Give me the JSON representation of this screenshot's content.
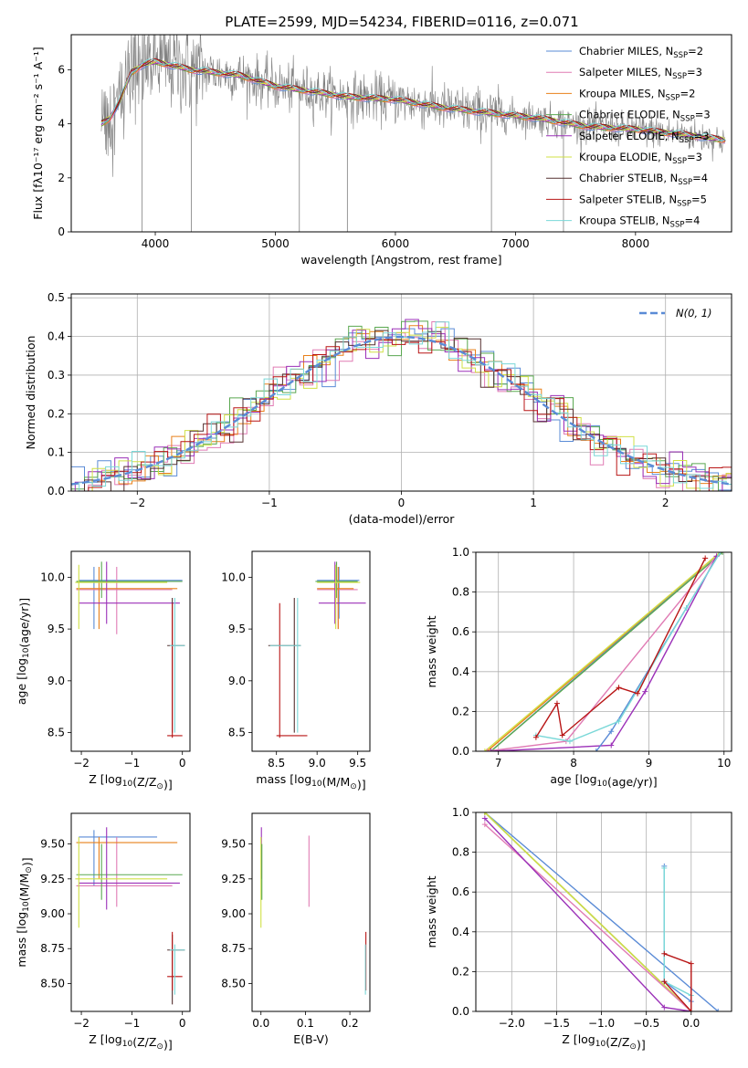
{
  "figure_title": "PLATE=2599, MJD=54234, FIBERID=0116, z=0.071",
  "colors": {
    "data": "#808080",
    "grid": "#b0b0b0",
    "models": [
      "#5a8bd6",
      "#e07bb4",
      "#e8801a",
      "#5aa850",
      "#9b30b8",
      "#d0e045",
      "#553030",
      "#b81515",
      "#7ad8d8"
    ]
  },
  "chart_data": [
    {
      "type": "line",
      "id": "spectrum",
      "xlabel": "wavelength [Angstrom, rest frame]",
      "ylabel": "Flux [fλ10⁻¹⁷ erg cm⁻² s⁻¹ A⁻¹]",
      "xlim": [
        3300,
        8800
      ],
      "ylim": [
        0,
        7.3
      ],
      "xticks": [
        4000,
        5000,
        6000,
        7000,
        8000
      ],
      "yticks": [
        0,
        2,
        4,
        6
      ],
      "legend": "top-right",
      "grid": false,
      "continuum": {
        "x": [
          3550,
          3620,
          3700,
          3800,
          3900,
          4000,
          4100,
          4300,
          4500,
          4700,
          5000,
          5300,
          5600,
          6000,
          6400,
          6800,
          7200,
          7600,
          8000,
          8400,
          8750
        ],
        "y": [
          4.0,
          4.2,
          4.8,
          5.9,
          6.2,
          6.3,
          6.2,
          6.0,
          5.9,
          5.8,
          5.4,
          5.2,
          5.0,
          4.9,
          4.6,
          4.4,
          4.2,
          3.9,
          3.8,
          3.6,
          3.4
        ]
      },
      "series": [
        {
          "name": "Chabrier MILES, N",
          "sub": "SSP",
          "suffix": "=2"
        },
        {
          "name": "Salpeter MILES, N",
          "sub": "SSP",
          "suffix": "=3"
        },
        {
          "name": "Kroupa MILES, N",
          "sub": "SSP",
          "suffix": "=2"
        },
        {
          "name": "Chabrier ELODIE, N",
          "sub": "SSP",
          "suffix": "=3"
        },
        {
          "name": "Salpeter ELODIE, N",
          "sub": "SSP",
          "suffix": "=3"
        },
        {
          "name": "Kroupa ELODIE, N",
          "sub": "SSP",
          "suffix": "=3"
        },
        {
          "name": "Chabrier STELIB, N",
          "sub": "SSP",
          "suffix": "=4"
        },
        {
          "name": "Salpeter STELIB, N",
          "sub": "SSP",
          "suffix": "=5"
        },
        {
          "name": "Kroupa STELIB, N",
          "sub": "SSP",
          "suffix": "=4"
        }
      ]
    },
    {
      "type": "bar",
      "id": "residuals",
      "xlabel": "(data-model)/error",
      "ylabel": "Normed distribution",
      "xlim": [
        -2.5,
        2.5
      ],
      "ylim": [
        0,
        0.51
      ],
      "xticks": [
        -2,
        -1,
        0,
        1,
        2
      ],
      "xtick_labels": [
        "−2",
        "−1",
        "0",
        "1",
        "2"
      ],
      "yticks": [
        0.0,
        0.1,
        0.2,
        0.3,
        0.4,
        0.5
      ],
      "ytick_labels": [
        "0.0",
        "0.1",
        "0.2",
        "0.3",
        "0.4",
        "0.5"
      ],
      "grid": true,
      "legend": "top-right",
      "normal_curve": {
        "name": "N(0, 1)",
        "mean": 0,
        "sd": 1
      },
      "bin_width": 0.1
    },
    {
      "type": "scatter",
      "id": "age-vs-Z",
      "xlabel": "Z [log10(Z/Z⊙)]",
      "ylabel": "age  [log10(age/yr)]",
      "xlim": [
        -2.2,
        0.15
      ],
      "ylim": [
        8.32,
        10.25
      ],
      "xticks": [
        -2,
        -1,
        0
      ],
      "xtick_labels": [
        "−2",
        "−1",
        "0"
      ],
      "yticks": [
        8.5,
        9.0,
        9.5,
        10.0
      ],
      "ytick_labels": [
        "8.5",
        "9.0",
        "9.5",
        "10.0"
      ],
      "grid": false,
      "crosses": [
        {
          "c": 0,
          "x": -1.75,
          "y": 9.97,
          "xe": [
            -2.05,
            0.0
          ],
          "ye": [
            9.5,
            10.1
          ]
        },
        {
          "c": 1,
          "x": -1.3,
          "y": 9.88,
          "xe": [
            -2.1,
            -0.2
          ],
          "ye": [
            9.45,
            10.1
          ]
        },
        {
          "c": 2,
          "x": -1.65,
          "y": 9.89,
          "xe": [
            -2.1,
            -0.1
          ],
          "ye": [
            9.5,
            10.1
          ]
        },
        {
          "c": 3,
          "x": -1.6,
          "y": 9.96,
          "xe": [
            -2.1,
            0.0
          ],
          "ye": [
            9.8,
            10.15
          ]
        },
        {
          "c": 4,
          "x": -1.5,
          "y": 9.75,
          "xe": [
            -2.05,
            -0.05
          ],
          "ye": [
            9.55,
            10.15
          ]
        },
        {
          "c": 5,
          "x": -2.05,
          "y": 9.95,
          "xe": [
            -2.12,
            -0.3
          ],
          "ye": [
            9.5,
            10.12
          ]
        },
        {
          "c": 6,
          "x": -0.2,
          "y": 9.34,
          "xe": [
            -0.3,
            0.05
          ],
          "ye": [
            8.5,
            9.8
          ]
        },
        {
          "c": 7,
          "x": -0.2,
          "y": 8.47,
          "xe": [
            -0.3,
            0.0
          ],
          "ye": [
            8.45,
            9.75
          ]
        },
        {
          "c": 8,
          "x": -0.15,
          "y": 9.34,
          "xe": [
            -0.25,
            0.05
          ],
          "ye": [
            8.5,
            9.8
          ]
        }
      ]
    },
    {
      "type": "scatter",
      "id": "age-vs-mass",
      "xlabel": "mass [log10(M/M⊙)]",
      "ylabel": "",
      "xlim": [
        8.2,
        9.65
      ],
      "ylim": [
        8.32,
        10.25
      ],
      "xticks": [
        8.5,
        9.0,
        9.5
      ],
      "xtick_labels": [
        "8.5",
        "9.0",
        "9.5"
      ],
      "yticks": [
        8.5,
        9.0,
        9.5,
        10.0
      ],
      "ytick_labels": [
        "8.5",
        "9.0",
        "9.5",
        "10.0"
      ],
      "grid": false,
      "crosses": [
        {
          "c": 0,
          "x": 9.27,
          "y": 9.97,
          "xe": [
            9.0,
            9.52
          ],
          "ye": [
            9.6,
            10.1
          ]
        },
        {
          "c": 1,
          "x": 9.26,
          "y": 9.88,
          "xe": [
            9.0,
            9.5
          ],
          "ye": [
            9.5,
            10.1
          ]
        },
        {
          "c": 2,
          "x": 9.26,
          "y": 9.89,
          "xe": [
            9.0,
            9.45
          ],
          "ye": [
            9.5,
            10.1
          ]
        },
        {
          "c": 3,
          "x": 9.24,
          "y": 9.96,
          "xe": [
            8.98,
            9.5
          ],
          "ye": [
            9.8,
            10.15
          ]
        },
        {
          "c": 4,
          "x": 9.22,
          "y": 9.75,
          "xe": [
            9.02,
            9.6
          ],
          "ye": [
            9.55,
            10.15
          ]
        },
        {
          "c": 5,
          "x": 9.23,
          "y": 9.95,
          "xe": [
            9.0,
            9.53
          ],
          "ye": [
            9.5,
            10.12
          ]
        },
        {
          "c": 6,
          "x": 8.72,
          "y": 9.34,
          "xe": [
            8.4,
            8.8
          ],
          "ye": [
            8.5,
            9.8
          ]
        },
        {
          "c": 7,
          "x": 8.54,
          "y": 8.47,
          "xe": [
            8.5,
            8.88
          ],
          "ye": [
            8.45,
            9.75
          ]
        },
        {
          "c": 8,
          "x": 8.76,
          "y": 9.34,
          "xe": [
            8.42,
            8.8
          ],
          "ye": [
            8.5,
            9.8
          ]
        }
      ]
    },
    {
      "type": "line",
      "id": "massweight-vs-age",
      "xlabel": "age  [log10(age/yr)]",
      "ylabel": "mass weight",
      "xlim": [
        6.7,
        10.1
      ],
      "ylim": [
        0,
        1
      ],
      "xticks": [
        7,
        8,
        9,
        10
      ],
      "xtick_labels": [
        "7",
        "8",
        "9",
        "10"
      ],
      "yticks": [
        0.0,
        0.2,
        0.4,
        0.6,
        0.8,
        1.0
      ],
      "ytick_labels": [
        "0.0",
        "0.2",
        "0.4",
        "0.6",
        "0.8",
        "1.0"
      ],
      "grid": true,
      "lines": [
        {
          "c": 0,
          "x": [
            6.9,
            9.95
          ],
          "y": [
            0.0,
            1.0
          ]
        },
        {
          "c": 2,
          "x": [
            6.85,
            9.95
          ],
          "y": [
            0.0,
            1.0
          ]
        },
        {
          "c": 3,
          "x": [
            6.9,
            9.98
          ],
          "y": [
            0.0,
            1.0
          ]
        },
        {
          "c": 5,
          "x": [
            6.82,
            9.95
          ],
          "y": [
            0.0,
            1.0
          ]
        },
        {
          "c": 1,
          "x": [
            6.85,
            7.9,
            9.9
          ],
          "y": [
            0.0,
            0.05,
            0.98
          ]
        },
        {
          "c": 4,
          "x": [
            6.9,
            8.5,
            8.95,
            9.9
          ],
          "y": [
            0.0,
            0.03,
            0.3,
            0.98
          ]
        },
        {
          "c": 0,
          "x": [
            8.3,
            8.5,
            9.5,
            9.95
          ],
          "y": [
            0.0,
            0.1,
            0.72,
            1.0
          ]
        },
        {
          "c": 8,
          "x": [
            7.5,
            7.95,
            8.6,
            9.5,
            9.95
          ],
          "y": [
            0.08,
            0.05,
            0.15,
            0.72,
            1.0
          ]
        },
        {
          "c": 7,
          "x": [
            7.5,
            7.78,
            7.85,
            8.6,
            8.85,
            9.75
          ],
          "y": [
            0.07,
            0.24,
            0.08,
            0.32,
            0.29,
            0.97
          ]
        }
      ]
    },
    {
      "type": "scatter",
      "id": "mass-vs-Z",
      "xlabel": "Z [log10(Z/Z⊙)]",
      "ylabel": "mass [log10(M/M⊙)]",
      "xlim": [
        -2.2,
        0.15
      ],
      "ylim": [
        8.3,
        9.72
      ],
      "xticks": [
        -2,
        -1,
        0
      ],
      "xtick_labels": [
        "−2",
        "−1",
        "0"
      ],
      "yticks": [
        8.5,
        8.75,
        9.0,
        9.25,
        9.5
      ],
      "ytick_labels": [
        "8.50",
        "8.75",
        "9.00",
        "9.25",
        "9.50"
      ],
      "grid": false,
      "crosses": [
        {
          "c": 0,
          "x": -1.75,
          "y": 9.55,
          "xe": [
            -2.05,
            -0.5
          ],
          "ye": [
            9.2,
            9.6
          ]
        },
        {
          "c": 1,
          "x": -1.3,
          "y": 9.2,
          "xe": [
            -2.1,
            -0.2
          ],
          "ye": [
            9.05,
            9.55
          ]
        },
        {
          "c": 2,
          "x": -1.65,
          "y": 9.51,
          "xe": [
            -2.1,
            -0.1
          ],
          "ye": [
            9.25,
            9.55
          ]
        },
        {
          "c": 3,
          "x": -1.6,
          "y": 9.28,
          "xe": [
            -2.1,
            0.0
          ],
          "ye": [
            9.1,
            9.5
          ]
        },
        {
          "c": 4,
          "x": -1.5,
          "y": 9.22,
          "xe": [
            -2.05,
            -0.05
          ],
          "ye": [
            9.03,
            9.62
          ]
        },
        {
          "c": 5,
          "x": -2.05,
          "y": 9.25,
          "xe": [
            -2.12,
            -0.3
          ],
          "ye": [
            8.9,
            9.55
          ]
        },
        {
          "c": 6,
          "x": -0.2,
          "y": 8.74,
          "xe": [
            -0.3,
            0.05
          ],
          "ye": [
            8.35,
            8.85
          ]
        },
        {
          "c": 7,
          "x": -0.2,
          "y": 8.55,
          "xe": [
            -0.3,
            0.0
          ],
          "ye": [
            8.45,
            8.87
          ]
        },
        {
          "c": 8,
          "x": -0.15,
          "y": 8.74,
          "xe": [
            -0.25,
            0.05
          ],
          "ye": [
            8.42,
            8.78
          ]
        }
      ]
    },
    {
      "type": "scatter",
      "id": "mass-vs-EBV",
      "xlabel": "E(B-V)",
      "ylabel": "",
      "xlim": [
        -0.02,
        0.245
      ],
      "ylim": [
        8.3,
        9.72
      ],
      "xticks": [
        0.0,
        0.1,
        0.2
      ],
      "xtick_labels": [
        "0.0",
        "0.1",
        "0.2"
      ],
      "yticks": [
        8.5,
        8.75,
        9.0,
        9.25,
        9.5
      ],
      "ytick_labels": [
        "8.50",
        "8.75",
        "9.00",
        "9.25",
        "9.50"
      ],
      "grid": false,
      "vsegs": [
        {
          "c": 4,
          "x": 0.001,
          "y": [
            9.25,
            9.62
          ]
        },
        {
          "c": 5,
          "x": 0.0,
          "y": [
            8.9,
            9.55
          ]
        },
        {
          "c": 3,
          "x": 0.002,
          "y": [
            9.1,
            9.5
          ]
        },
        {
          "c": 1,
          "x": 0.108,
          "y": [
            9.05,
            9.56
          ]
        },
        {
          "c": 7,
          "x": 0.236,
          "y": [
            8.45,
            8.87
          ]
        },
        {
          "c": 8,
          "x": 0.235,
          "y": [
            8.42,
            8.78
          ]
        }
      ]
    },
    {
      "type": "line",
      "id": "massweight-vs-Z",
      "xlabel": "Z [log10(Z/Z⊙)]",
      "ylabel": "mass weight",
      "xlim": [
        -2.4,
        0.45
      ],
      "ylim": [
        0,
        1
      ],
      "xticks": [
        -2.0,
        -1.5,
        -1.0,
        -0.5,
        0.0
      ],
      "xtick_labels": [
        "−2.0",
        "−1.5",
        "−1.0",
        "−0.5",
        "0.0"
      ],
      "yticks": [
        0.0,
        0.2,
        0.4,
        0.6,
        0.8,
        1.0
      ],
      "ytick_labels": [
        "0.0",
        "0.2",
        "0.4",
        "0.6",
        "0.8",
        "1.0"
      ],
      "grid": true,
      "lines": [
        {
          "c": 0,
          "x": [
            -2.3,
            0.3
          ],
          "y": [
            1.0,
            0.0
          ]
        },
        {
          "c": 2,
          "x": [
            -2.3,
            0.0
          ],
          "y": [
            1.0,
            0.0
          ]
        },
        {
          "c": 3,
          "x": [
            -2.3,
            0.0
          ],
          "y": [
            1.0,
            0.0
          ]
        },
        {
          "c": 5,
          "x": [
            -2.3,
            0.0
          ],
          "y": [
            1.0,
            0.0
          ]
        },
        {
          "c": 1,
          "x": [
            -2.3,
            0.0
          ],
          "y": [
            0.94,
            0.0
          ]
        },
        {
          "c": 4,
          "x": [
            -2.3,
            -0.3,
            0.0
          ],
          "y": [
            0.97,
            0.02,
            0.0
          ]
        },
        {
          "c": 0,
          "x": [
            -0.3,
            -0.3,
            0.0,
            0.0
          ],
          "y": [
            0.73,
            0.15,
            0.05,
            0.0
          ]
        },
        {
          "c": 8,
          "x": [
            -0.3,
            -0.3,
            0.0,
            0.0
          ],
          "y": [
            0.72,
            0.15,
            0.08,
            0.0
          ]
        },
        {
          "c": 7,
          "x": [
            -0.3,
            0.0,
            0.0,
            -0.3
          ],
          "y": [
            0.29,
            0.24,
            0.0,
            0.15
          ]
        }
      ]
    }
  ]
}
